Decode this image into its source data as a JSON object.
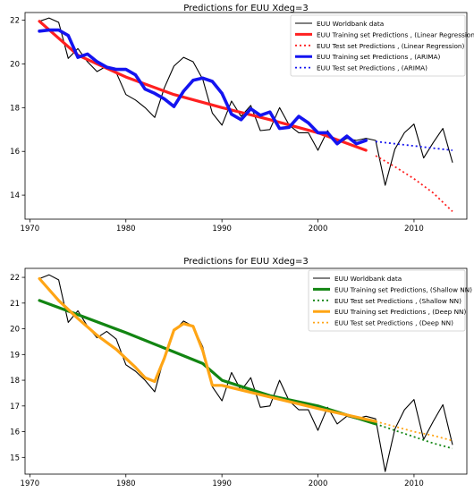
{
  "chart_data": [
    {
      "type": "line",
      "title": "Predictions for EUU  Xdeg=3",
      "xlabel": "",
      "ylabel": "",
      "xlim": [
        1969.5,
        2015.5
      ],
      "ylim": [
        12.9,
        22.35
      ],
      "xticks": [
        1970,
        1980,
        1990,
        2000,
        2010
      ],
      "yticks": [
        14,
        16,
        18,
        20,
        22
      ],
      "grid": false,
      "legend": "top-right",
      "series": [
        {
          "name": "EUU Worldbank data",
          "color": "#000000",
          "style": "solid",
          "width": 1.1,
          "x": [
            1971,
            1972,
            1973,
            1974,
            1975,
            1976,
            1977,
            1978,
            1979,
            1980,
            1981,
            1982,
            1983,
            1984,
            1985,
            1986,
            1987,
            1988,
            1989,
            1990,
            1991,
            1992,
            1993,
            1994,
            1995,
            1996,
            1997,
            1998,
            1999,
            2000,
            2001,
            2002,
            2003,
            2004,
            2005,
            2006,
            2007,
            2008,
            2009,
            2010,
            2011,
            2012,
            2013,
            2014
          ],
          "y": [
            21.95,
            22.1,
            21.9,
            20.25,
            20.7,
            20.1,
            19.65,
            19.9,
            19.6,
            18.6,
            18.35,
            18.0,
            17.55,
            18.9,
            19.9,
            20.3,
            20.1,
            19.3,
            17.75,
            17.2,
            18.3,
            17.6,
            18.1,
            16.95,
            17.0,
            18.0,
            17.2,
            16.85,
            16.85,
            16.05,
            16.95,
            16.3,
            16.6,
            16.5,
            16.6,
            16.5,
            14.45,
            16.1,
            16.85,
            17.25,
            15.7,
            16.4,
            17.05,
            15.5
          ]
        },
        {
          "name": "EUU Training set Predictions , (Linear Regression)",
          "color": "#ff2020",
          "style": "solid",
          "width": 3.2,
          "x": [
            1971,
            1975,
            1980,
            1985,
            1990,
            1995,
            2000,
            2005
          ],
          "y": [
            21.95,
            20.4,
            19.4,
            18.6,
            18.0,
            17.45,
            16.85,
            16.05
          ]
        },
        {
          "name": "EUU Test set Predictions , (Linear Regression)",
          "color": "#ff2020",
          "style": "dotted",
          "width": 1.8,
          "x": [
            2006,
            2008,
            2010,
            2012,
            2014
          ],
          "y": [
            15.8,
            15.3,
            14.75,
            14.1,
            13.25
          ]
        },
        {
          "name": "EUU Training set Predictions , (ARIMA)",
          "color": "#1414f0",
          "style": "solid",
          "width": 3.6,
          "x": [
            1971,
            1972,
            1973,
            1974,
            1975,
            1976,
            1977,
            1978,
            1979,
            1980,
            1981,
            1982,
            1983,
            1984,
            1985,
            1986,
            1987,
            1988,
            1989,
            1990,
            1991,
            1992,
            1993,
            1994,
            1995,
            1996,
            1997,
            1998,
            1999,
            2000,
            2001,
            2002,
            2003,
            2004,
            2005
          ],
          "y": [
            21.5,
            21.55,
            21.55,
            21.3,
            20.3,
            20.45,
            20.1,
            19.85,
            19.75,
            19.75,
            19.5,
            18.85,
            18.65,
            18.4,
            18.05,
            18.75,
            19.25,
            19.35,
            19.2,
            18.65,
            17.7,
            17.45,
            17.95,
            17.65,
            17.8,
            17.05,
            17.1,
            17.6,
            17.3,
            16.85,
            16.85,
            16.35,
            16.7,
            16.35,
            16.5
          ]
        },
        {
          "name": "EUU Test set Predictions , (ARIMA)",
          "color": "#1414f0",
          "style": "dotted",
          "width": 1.8,
          "x": [
            2006,
            2008,
            2010,
            2012,
            2014
          ],
          "y": [
            16.45,
            16.35,
            16.25,
            16.15,
            16.05
          ]
        }
      ]
    },
    {
      "type": "line",
      "title": "Predictions for EUU  Xdeg=3",
      "xlabel": "",
      "ylabel": "",
      "xlim": [
        1969.5,
        2015.5
      ],
      "ylim": [
        14.35,
        22.35
      ],
      "xticks": [
        1970,
        1980,
        1990,
        2000,
        2010
      ],
      "yticks": [
        15,
        16,
        17,
        18,
        19,
        20,
        21,
        22
      ],
      "grid": false,
      "legend": "top-right",
      "series": [
        {
          "name": "EUU Worldbank data",
          "color": "#000000",
          "style": "solid",
          "width": 1.1,
          "x": [
            1971,
            1972,
            1973,
            1974,
            1975,
            1976,
            1977,
            1978,
            1979,
            1980,
            1981,
            1982,
            1983,
            1984,
            1985,
            1986,
            1987,
            1988,
            1989,
            1990,
            1991,
            1992,
            1993,
            1994,
            1995,
            1996,
            1997,
            1998,
            1999,
            2000,
            2001,
            2002,
            2003,
            2004,
            2005,
            2006,
            2007,
            2008,
            2009,
            2010,
            2011,
            2012,
            2013,
            2014
          ],
          "y": [
            21.95,
            22.1,
            21.9,
            20.25,
            20.7,
            20.1,
            19.65,
            19.9,
            19.6,
            18.6,
            18.35,
            18.0,
            17.55,
            18.9,
            19.9,
            20.3,
            20.1,
            19.3,
            17.75,
            17.2,
            18.3,
            17.6,
            18.1,
            16.95,
            17.0,
            18.0,
            17.2,
            16.85,
            16.85,
            16.05,
            16.95,
            16.3,
            16.6,
            16.5,
            16.6,
            16.5,
            14.45,
            16.1,
            16.85,
            17.25,
            15.7,
            16.4,
            17.05,
            15.5
          ]
        },
        {
          "name": "EUU Training set Predictions, (Shallow NN)",
          "color": "#128512",
          "style": "solid",
          "width": 3.2,
          "x": [
            1971,
            1975,
            1980,
            1985,
            1988,
            1990,
            1995,
            2000,
            2006
          ],
          "y": [
            21.1,
            20.55,
            19.85,
            19.1,
            18.65,
            18.0,
            17.4,
            17.0,
            16.3
          ]
        },
        {
          "name": "EUU Test set Predictions , (Shallow NN)",
          "color": "#128512",
          "style": "dotted",
          "width": 1.8,
          "x": [
            2006,
            2008,
            2010,
            2012,
            2014
          ],
          "y": [
            16.3,
            16.05,
            15.8,
            15.55,
            15.35
          ]
        },
        {
          "name": "EUU Training set Predictions , (Deep NN)",
          "color": "#ffa515",
          "style": "solid",
          "width": 3.2,
          "x": [
            1971,
            1973,
            1975,
            1977,
            1979,
            1981,
            1982,
            1983,
            1984,
            1985,
            1986,
            1987,
            1988,
            1989,
            1990,
            1995,
            2000,
            2006
          ],
          "y": [
            21.95,
            21.1,
            20.4,
            19.75,
            19.2,
            18.5,
            18.1,
            17.95,
            18.85,
            19.95,
            20.2,
            20.1,
            19.15,
            17.8,
            17.8,
            17.35,
            16.9,
            16.4
          ]
        },
        {
          "name": "EUU Test set Predictions , (Deep NN)",
          "color": "#ffa515",
          "style": "dotted",
          "width": 1.8,
          "x": [
            2006,
            2008,
            2010,
            2012,
            2014
          ],
          "y": [
            16.4,
            16.2,
            16.0,
            15.85,
            15.65
          ]
        }
      ]
    }
  ]
}
